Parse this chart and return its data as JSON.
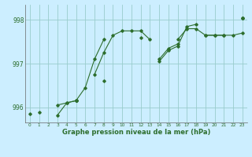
{
  "xlabel": "Graphe pression niveau de la mer (hPa)",
  "background_color": "#cceeff",
  "grid_color": "#99cccc",
  "line_color": "#2d6e2d",
  "xlim": [
    -0.5,
    23.5
  ],
  "ylim": [
    995.65,
    998.35
  ],
  "yticks": [
    996,
    997,
    998
  ],
  "xticks": [
    0,
    1,
    2,
    3,
    4,
    5,
    6,
    7,
    8,
    9,
    10,
    11,
    12,
    13,
    14,
    15,
    16,
    17,
    18,
    19,
    20,
    21,
    22,
    23
  ],
  "series": [
    [
      995.85,
      null,
      null,
      996.05,
      996.1,
      996.15,
      null,
      996.75,
      997.25,
      997.65,
      997.75,
      997.75,
      997.75,
      997.55,
      null,
      null,
      null,
      null,
      null,
      null,
      null,
      null,
      null,
      998.05
    ],
    [
      null,
      995.88,
      null,
      995.82,
      996.1,
      996.15,
      996.45,
      997.1,
      997.55,
      null,
      null,
      null,
      null,
      null,
      997.1,
      997.35,
      997.45,
      null,
      null,
      997.65,
      997.65,
      997.65,
      997.65,
      997.7
    ],
    [
      null,
      null,
      null,
      null,
      null,
      996.15,
      null,
      null,
      996.6,
      null,
      null,
      null,
      997.6,
      null,
      997.05,
      997.3,
      997.4,
      997.85,
      997.9,
      null,
      null,
      null,
      null,
      998.05
    ],
    [
      null,
      null,
      null,
      null,
      null,
      996.15,
      null,
      null,
      null,
      null,
      null,
      null,
      null,
      null,
      null,
      null,
      997.55,
      997.8,
      997.8,
      997.65,
      997.65,
      997.65,
      null,
      998.05
    ]
  ]
}
